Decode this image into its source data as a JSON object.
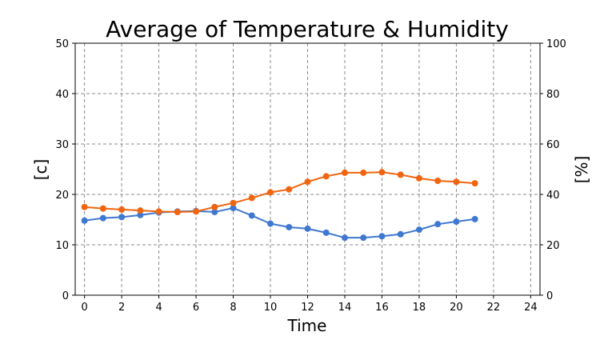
{
  "chart_data": {
    "type": "line",
    "title": "Average of Temperature & Humidity",
    "xlabel": "Time",
    "ylabel_left": "[c]",
    "ylabel_right": "[%]",
    "xlim": [
      -0.5,
      24.5
    ],
    "ylim_left": [
      0,
      50
    ],
    "ylim_right": [
      0,
      100
    ],
    "x_ticks": [
      0,
      2,
      4,
      6,
      8,
      10,
      12,
      14,
      16,
      18,
      20,
      22,
      24
    ],
    "y_ticks_left": [
      0,
      10,
      20,
      30,
      40,
      50
    ],
    "y_ticks_right": [
      0,
      20,
      40,
      60,
      80,
      100
    ],
    "grid": true,
    "x": [
      0,
      1,
      2,
      3,
      4,
      5,
      6,
      7,
      8,
      9,
      10,
      11,
      12,
      13,
      14,
      15,
      16,
      17,
      18,
      19,
      20,
      21
    ],
    "series": [
      {
        "axis": "left",
        "color": "#3f78d1",
        "values": [
          14.8,
          15.3,
          15.5,
          15.9,
          16.4,
          16.6,
          16.7,
          16.5,
          17.3,
          15.8,
          14.2,
          13.5,
          13.2,
          12.4,
          11.4,
          11.4,
          11.7,
          12.1,
          13.0,
          14.1,
          14.6,
          15.1
        ]
      },
      {
        "axis": "left",
        "color": "#f0650f",
        "values": [
          17.5,
          17.2,
          17.0,
          16.8,
          16.6,
          16.5,
          16.6,
          17.5,
          18.3,
          19.3,
          20.4,
          21.0,
          22.5,
          23.6,
          24.3,
          24.3,
          24.4,
          23.9,
          23.2,
          22.7,
          22.5,
          22.2
        ]
      }
    ]
  }
}
